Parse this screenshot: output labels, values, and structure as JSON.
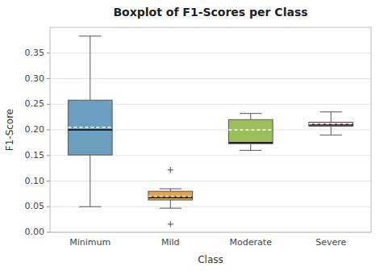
{
  "chart_data": {
    "type": "box",
    "title": "Boxplot of F1-Scores per Class",
    "xlabel": "Class",
    "ylabel": "F1-Score",
    "categories": [
      "Minimum",
      "Mild",
      "Moderate",
      "Severe"
    ],
    "boxes": [
      {
        "whislo": 0.05,
        "q1": 0.151,
        "med": 0.2,
        "mean": 0.205,
        "q3": 0.258,
        "whishi": 0.383,
        "fliers": []
      },
      {
        "whislo": 0.047,
        "q1": 0.063,
        "med": 0.068,
        "mean": 0.07,
        "q3": 0.08,
        "whishi": 0.085,
        "fliers": [
          0.122,
          0.016
        ]
      },
      {
        "whislo": 0.16,
        "q1": 0.173,
        "med": 0.175,
        "mean": 0.2,
        "q3": 0.22,
        "whishi": 0.232,
        "fliers": []
      },
      {
        "whislo": 0.19,
        "q1": 0.207,
        "med": 0.21,
        "mean": 0.212,
        "q3": 0.215,
        "whishi": 0.235,
        "fliers": []
      }
    ],
    "colors": [
      "#6A9FC0",
      "#E5A050",
      "#9BBF5A",
      "#E8B8C8"
    ],
    "ylim": [
      0.0,
      0.4
    ],
    "yticks": [
      {
        "value": 0.0,
        "label": "0.00"
      },
      {
        "value": 0.05,
        "label": "0.05"
      },
      {
        "value": 0.1,
        "label": "0.10"
      },
      {
        "value": 0.15,
        "label": "0.15"
      },
      {
        "value": 0.2,
        "label": "0.20"
      },
      {
        "value": 0.25,
        "label": "0.25"
      },
      {
        "value": 0.3,
        "label": "0.30"
      },
      {
        "value": 0.35,
        "label": "0.35"
      }
    ],
    "grid": true
  }
}
